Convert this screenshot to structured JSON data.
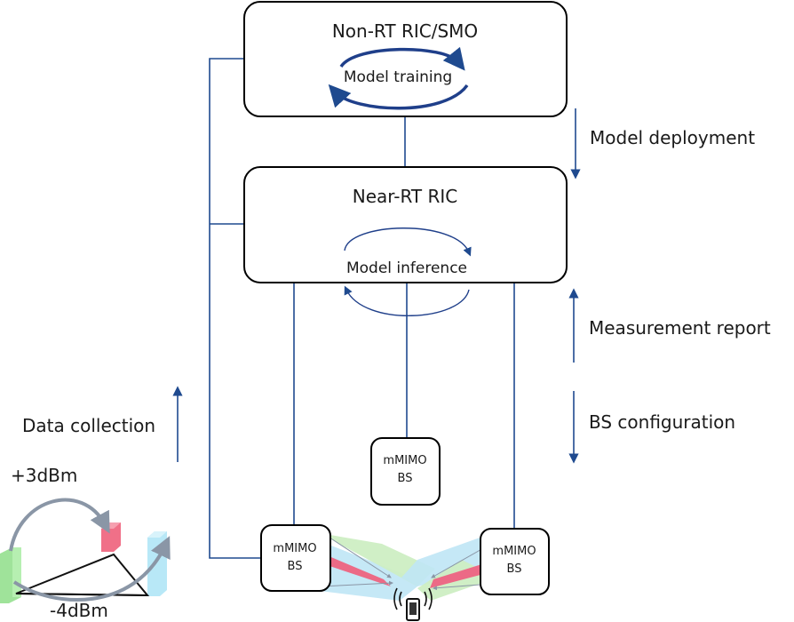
{
  "non_rt": {
    "title": "Non-RT RIC/SMO",
    "process": "Model training"
  },
  "near_rt": {
    "title": "Near-RT RIC",
    "process": "Model inference"
  },
  "side_labels": {
    "deployment": "Model deployment",
    "measurement": "Measurement report",
    "configuration": "BS configuration",
    "collection": "Data collection"
  },
  "bs": {
    "center": {
      "line1": "mMIMO",
      "line2": "BS"
    },
    "left": {
      "line1": "mMIMO",
      "line2": "BS"
    },
    "right": {
      "line1": "mMIMO",
      "line2": "BS"
    }
  },
  "power": {
    "up": "+3dBm",
    "down": "-4dBm"
  },
  "colors": {
    "wire": "#1f4a8f",
    "beam_green": "#cdeec3",
    "beam_blue": "#bfe6f5",
    "beam_red": "#ec6a86",
    "bar_green": "#9fe39a",
    "bar_red": "#f07088",
    "bar_blue": "#b8e8f7"
  },
  "icons": [
    "cycle-arrow-icon",
    "arrow-down-icon",
    "arrow-up-icon",
    "phone-icon",
    "signal-icon"
  ]
}
